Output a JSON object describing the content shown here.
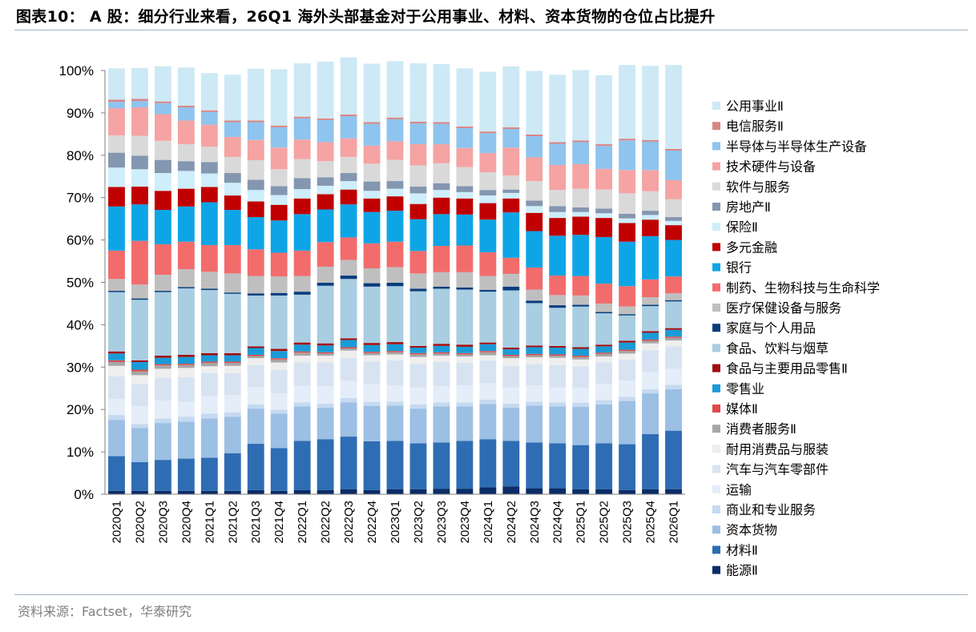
{
  "title": "图表10： A 股：细分行业来看，26Q1 海外头部基金对于公用事业、材料、资本货物的仓位占比提升",
  "source": "资料来源：Factset，华泰研究",
  "chart_data": {
    "type": "bar",
    "stacked": true,
    "ylim": [
      0,
      100
    ],
    "yticks": [
      "0%",
      "10%",
      "20%",
      "30%",
      "40%",
      "50%",
      "60%",
      "70%",
      "80%",
      "90%",
      "100%"
    ],
    "categories": [
      "2020Q1",
      "2020Q2",
      "2020Q3",
      "2020Q4",
      "2021Q1",
      "2021Q2",
      "2021Q3",
      "2021Q4",
      "2022Q1",
      "2022Q2",
      "2022Q3",
      "2022Q4",
      "2023Q1",
      "2023Q2",
      "2023Q3",
      "2023Q4",
      "2024Q1",
      "2024Q2",
      "2024Q3",
      "2024Q4",
      "2025Q1",
      "2025Q2",
      "2025Q3",
      "2025Q4",
      "2026Q1"
    ],
    "legend_position": "right",
    "series": [
      {
        "name": "能源Ⅱ",
        "color": "#0b2c67",
        "values": [
          0.8,
          0.8,
          0.8,
          0.8,
          0.8,
          0.8,
          1,
          0.8,
          1,
          1,
          1.2,
          1,
          1.2,
          1.2,
          1.3,
          1.3,
          1.6,
          1.8,
          1.4,
          1.4,
          1.2,
          1.2,
          1,
          1.2,
          1.2
        ]
      },
      {
        "name": "材料Ⅱ",
        "color": "#2e6db3",
        "values": [
          8.2,
          6.8,
          7.3,
          7.6,
          7.8,
          8.9,
          10.9,
          10.1,
          11.6,
          12,
          12.4,
          11.5,
          11.4,
          10.8,
          10.9,
          11.3,
          11.4,
          10.8,
          10.8,
          10.6,
          10.4,
          10.8,
          10.8,
          13,
          13.8
        ]
      },
      {
        "name": "资本货物",
        "color": "#9cbfe4",
        "values": [
          8.5,
          8,
          8.7,
          8.7,
          9.3,
          8.6,
          8.3,
          8.1,
          8.1,
          7.4,
          8.1,
          8.3,
          8.3,
          8.2,
          8.5,
          8.1,
          8.3,
          7.8,
          8.7,
          8.7,
          9,
          9.2,
          10.2,
          9.6,
          9.8
        ]
      },
      {
        "name": "商业和专业服务",
        "color": "#c5d9f0",
        "values": [
          1.2,
          1,
          1.1,
          1.2,
          1.1,
          1,
          1,
          1,
          1,
          1,
          1,
          1,
          1,
          1,
          1,
          1,
          1,
          1,
          1,
          1,
          1,
          1,
          1,
          1,
          1
        ]
      },
      {
        "name": "运输",
        "color": "#e4edf8",
        "values": [
          3.8,
          4.2,
          4.2,
          3.5,
          4.2,
          4.1,
          4.1,
          3.8,
          3.9,
          4.1,
          4,
          4.2,
          3.8,
          4,
          3.8,
          4,
          3.9,
          3.8,
          3.8,
          3.5,
          3.5,
          3.9,
          3.8,
          4,
          3.8
        ]
      },
      {
        "name": "汽车与汽车零部件",
        "color": "#d8e3f2",
        "values": [
          5.3,
          5.2,
          5.3,
          5.8,
          5.4,
          5.2,
          5.2,
          5.5,
          5.5,
          5.6,
          5.5,
          5.3,
          5.9,
          5.6,
          5.7,
          5.3,
          5.4,
          5.1,
          5,
          5.3,
          5.1,
          5,
          5,
          5.2,
          5.3
        ]
      },
      {
        "name": "耐用消费品与服装",
        "color": "#eeeeee",
        "values": [
          2.5,
          2.1,
          2.2,
          2.2,
          1.6,
          1.7,
          1.6,
          1.8,
          1.6,
          1.6,
          1.7,
          1.5,
          1.4,
          1.6,
          1.5,
          1.5,
          1.2,
          1.8,
          1.6,
          1.7,
          1.6,
          1.4,
          1.4,
          1.6,
          1.4
        ]
      },
      {
        "name": "消费者服务Ⅱ",
        "color": "#a6a6a6",
        "values": [
          0.9,
          0.9,
          0.8,
          0.7,
          0.8,
          0.7,
          0.5,
          0.7,
          0.7,
          0.5,
          0.5,
          0.5,
          0.5,
          0.6,
          0.5,
          0.5,
          0.7,
          0.5,
          0.5,
          0.5,
          0.6,
          0.6,
          0.6,
          0.6,
          0.6
        ]
      },
      {
        "name": "媒体Ⅱ",
        "color": "#e04a4a",
        "values": [
          0.4,
          0.4,
          0.3,
          0.3,
          0.3,
          0.3,
          0.3,
          0.3,
          0.3,
          0.3,
          0.3,
          0.3,
          0.3,
          0.3,
          0.3,
          0.3,
          0.3,
          0.3,
          0.3,
          0.3,
          0.3,
          0.3,
          0.3,
          0.3,
          0.3
        ]
      },
      {
        "name": "零售业",
        "color": "#1a9bd7",
        "values": [
          1.6,
          1.8,
          1.5,
          1.6,
          1.5,
          1.5,
          1.6,
          1.7,
          1.6,
          1.6,
          1.7,
          1.6,
          1.6,
          1.3,
          1.5,
          1.5,
          1.6,
          1.3,
          1.6,
          1.6,
          1.6,
          1.5,
          1.7,
          1.6,
          1.6
        ]
      },
      {
        "name": "食品与主要用品零售Ⅱ",
        "color": "#a30c0c",
        "values": [
          0.5,
          0.4,
          0.5,
          0.5,
          0.5,
          0.5,
          0.4,
          0.5,
          0.5,
          0.5,
          0.4,
          0.5,
          0.5,
          0.4,
          0.5,
          0.5,
          0.4,
          0.4,
          0.4,
          0.4,
          0.4,
          0.4,
          0.4,
          0.4,
          0.4
        ]
      },
      {
        "name": "食品、饮料与烟草",
        "color": "#a9cde1",
        "values": [
          14,
          14.3,
          15,
          15.7,
          14.9,
          14,
          12,
          12.6,
          11.3,
          13.6,
          14,
          13.3,
          13.2,
          12.9,
          13,
          13,
          12,
          13.5,
          10,
          9,
          9.6,
          7.4,
          6,
          5.9,
          6.3
        ]
      },
      {
        "name": "家庭与个人用品",
        "color": "#073c7c",
        "values": [
          0.3,
          0.3,
          0.3,
          0.3,
          0.3,
          0.3,
          0.5,
          0.6,
          0.7,
          0.7,
          0.8,
          0.8,
          0.8,
          0.6,
          0.5,
          0.5,
          0.4,
          0.9,
          0.6,
          0.6,
          0.4,
          0.3,
          0.3,
          0.3,
          0.3
        ]
      },
      {
        "name": "医疗保健设备与服务",
        "color": "#bfbfbf",
        "values": [
          2.8,
          3.3,
          3.8,
          4.2,
          4,
          4.5,
          4.1,
          3.9,
          3.7,
          3.8,
          3.7,
          3.5,
          3.7,
          3.6,
          3.4,
          3.6,
          3.3,
          3,
          2.6,
          2.4,
          2.2,
          2,
          1.8,
          1.8,
          1.6
        ]
      },
      {
        "name": "制药、生物科技与生命科学",
        "color": "#f26c6c",
        "values": [
          6.7,
          10.3,
          7.2,
          6.5,
          6.3,
          6.7,
          6.3,
          5.6,
          6,
          5.8,
          5.3,
          5.9,
          6,
          5.3,
          6.2,
          6.3,
          5.6,
          3.8,
          5.2,
          4.6,
          4.6,
          4.7,
          4.8,
          4.2,
          4
        ]
      },
      {
        "name": "银行",
        "color": "#0ea5e6",
        "values": [
          10.4,
          8.6,
          8.1,
          8.3,
          10.1,
          8.3,
          7.6,
          7.6,
          8.6,
          7.7,
          7.8,
          7.4,
          7.3,
          7.5,
          7.5,
          7.3,
          7.7,
          10.7,
          8.6,
          9.4,
          9.7,
          11,
          10.5,
          10.2,
          8.6
        ]
      },
      {
        "name": "多元金融",
        "color": "#c00000",
        "values": [
          4.6,
          4.2,
          4.5,
          4.2,
          3.6,
          3.4,
          3.7,
          3.7,
          3.7,
          3.6,
          3.5,
          3.2,
          3.4,
          3.6,
          3.9,
          3.8,
          3.9,
          3.3,
          4.3,
          4.2,
          4.3,
          4.5,
          4.4,
          3.9,
          3.5
        ]
      },
      {
        "name": "保险Ⅱ",
        "color": "#cdeefa",
        "values": [
          4.6,
          4.1,
          4.2,
          4.2,
          3.2,
          3,
          2.7,
          2.3,
          2.2,
          2,
          2,
          1.8,
          1.8,
          2.5,
          1.8,
          1.5,
          1.8,
          1.3,
          1.6,
          1.4,
          1.1,
          1.1,
          1.1,
          1.1,
          1
        ]
      },
      {
        "name": "房地产Ⅱ",
        "color": "#8496b0",
        "values": [
          3.5,
          3.2,
          3.1,
          2.3,
          2.7,
          2.3,
          2.4,
          2.1,
          2.6,
          2,
          1.9,
          2.2,
          1.8,
          1.6,
          1.6,
          1.4,
          1.3,
          0.8,
          1.3,
          1.4,
          1.1,
          1.1,
          1.1,
          1,
          0.9
        ]
      },
      {
        "name": "软件与服务",
        "color": "#d9d9d9",
        "values": [
          4.1,
          4.7,
          4.5,
          4,
          3.6,
          3.8,
          4.6,
          4,
          4.5,
          3.8,
          3.8,
          4.2,
          5,
          5,
          4.7,
          4.5,
          4.2,
          3.3,
          4.6,
          3.8,
          4.4,
          4.5,
          4.8,
          4.6,
          4.2
        ]
      },
      {
        "name": "技术硬件与设备",
        "color": "#f5a3a3",
        "values": [
          6.4,
          6.7,
          6.3,
          5.6,
          5.2,
          4.7,
          4.8,
          5.1,
          4.6,
          4.5,
          4.4,
          4.3,
          4.4,
          5,
          4.5,
          4.5,
          4.5,
          6.6,
          5.6,
          5.9,
          5.8,
          4.9,
          5.5,
          5,
          4.5
        ]
      },
      {
        "name": "半导体与半导体生产设备",
        "color": "#8ec4ee",
        "values": [
          1.5,
          1.5,
          2.6,
          3.1,
          3,
          3.5,
          4.2,
          4.8,
          5,
          5.2,
          5.2,
          5.1,
          5.2,
          4.9,
          4.8,
          4.7,
          4.7,
          4.4,
          5,
          5,
          5.2,
          5.4,
          7,
          6.7,
          7
        ]
      },
      {
        "name": "电信服务Ⅱ",
        "color": "#d98585",
        "values": [
          0.5,
          0.5,
          0.4,
          0.4,
          0.4,
          0.4,
          0.4,
          0.4,
          0.4,
          0.4,
          0.4,
          0.4,
          0.4,
          0.4,
          0.4,
          0.4,
          0.4,
          0.4,
          0.4,
          0.4,
          0.4,
          0.4,
          0.4,
          0.4,
          0.4
        ]
      },
      {
        "name": "公用事业Ⅱ",
        "color": "#cde9f5",
        "values": [
          7.4,
          7.3,
          8.3,
          9,
          8.8,
          10.8,
          12.2,
          13.3,
          12.6,
          13.4,
          13.5,
          13.8,
          13.3,
          13.8,
          13.7,
          13.7,
          14.1,
          14.4,
          15,
          15.9,
          16.6,
          16.3,
          17.4,
          17.5,
          19.8
        ]
      }
    ]
  }
}
